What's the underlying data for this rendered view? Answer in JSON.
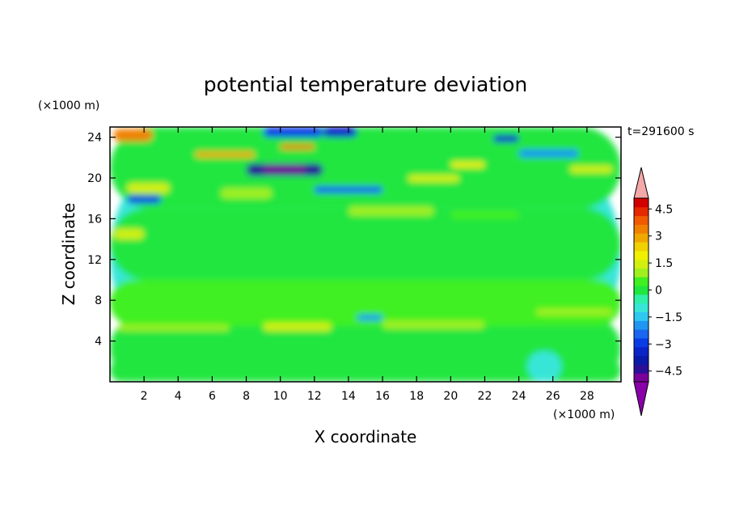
{
  "chart_data": {
    "type": "heatmap",
    "title": "potential temperature deviation",
    "xlabel": "X coordinate",
    "ylabel": "Z coordinate",
    "x_unit": "(×1000 m)",
    "y_unit": "(×1000 m)",
    "time_label": "t=291600 s",
    "xlim": [
      0,
      30
    ],
    "ylim": [
      0,
      25
    ],
    "x_ticks": [
      2,
      4,
      6,
      8,
      10,
      12,
      14,
      16,
      18,
      20,
      22,
      24,
      26,
      28
    ],
    "y_ticks": [
      4,
      8,
      12,
      16,
      20,
      24
    ],
    "colorbar": {
      "levels": [
        -5.1,
        -4.5,
        -3.9,
        -3.3,
        -3.0,
        -2.4,
        -1.8,
        -1.5,
        -0.9,
        -0.3,
        0.0,
        0.6,
        1.2,
        1.5,
        2.1,
        2.7,
        3.0,
        3.6,
        4.2,
        4.5,
        5.1
      ],
      "colors": [
        "#7a0099",
        "#2b0f99",
        "#0a1aa8",
        "#0a24c8",
        "#0a3ce6",
        "#1a66f0",
        "#1e96f2",
        "#2ec8f0",
        "#38e6d8",
        "#30f0a8",
        "#20e640",
        "#40f020",
        "#a0f020",
        "#d2f010",
        "#f0f000",
        "#f0d200",
        "#f0a800",
        "#f08000",
        "#f05a00",
        "#e62800",
        "#d20000"
      ],
      "under_color": "#8a00a8",
      "over_color": "#f4a8a8",
      "tick_labels": [
        "4.5",
        "3",
        "1.5",
        "0",
        "−1.5",
        "−3",
        "−4.5"
      ]
    },
    "regions": [
      {
        "x": [
          0,
          30
        ],
        "y": [
          0,
          25
        ],
        "value": -0.6
      },
      {
        "x": [
          0,
          30
        ],
        "y": [
          0,
          6.5
        ],
        "value": 0.2
      },
      {
        "x": [
          0,
          30
        ],
        "y": [
          5.5,
          10
        ],
        "value": 0.6
      },
      {
        "x": [
          0,
          30
        ],
        "y": [
          10,
          17
        ],
        "value": 0.3
      },
      {
        "x": [
          0,
          30
        ],
        "y": [
          17,
          25
        ],
        "value": 0.3
      },
      {
        "x": [
          0.2,
          2.0
        ],
        "y": [
          14.0,
          15.0
        ],
        "value": 1.5
      },
      {
        "x": [
          1.0,
          3.5
        ],
        "y": [
          18.5,
          19.5
        ],
        "value": 1.8
      },
      {
        "x": [
          1.0,
          3.0
        ],
        "y": [
          17.5,
          18.3
        ],
        "value": -2.8
      },
      {
        "x": [
          6.5,
          9.5
        ],
        "y": [
          18.0,
          19.0
        ],
        "value": 1.4
      },
      {
        "x": [
          8.0,
          12.5
        ],
        "y": [
          20.2,
          21.4
        ],
        "value": -4.0
      },
      {
        "x": [
          9.0,
          11.5
        ],
        "y": [
          20.5,
          21.2
        ],
        "value": -4.6
      },
      {
        "x": [
          10.0,
          12.0
        ],
        "y": [
          22.8,
          23.3
        ],
        "value": 3.6
      },
      {
        "x": [
          5.0,
          8.5
        ],
        "y": [
          22.0,
          22.6
        ],
        "value": 3.2
      },
      {
        "x": [
          0.2,
          2.5
        ],
        "y": [
          23.6,
          24.8
        ],
        "value": 3.8
      },
      {
        "x": [
          9.0,
          12.5
        ],
        "y": [
          24.0,
          25.0
        ],
        "value": -2.6
      },
      {
        "x": [
          12.5,
          14.5
        ],
        "y": [
          24.0,
          25.0
        ],
        "value": -3.2
      },
      {
        "x": [
          17.5,
          20.5
        ],
        "y": [
          19.6,
          20.3
        ],
        "value": 2.0
      },
      {
        "x": [
          20.0,
          22.0
        ],
        "y": [
          21.0,
          21.6
        ],
        "value": 2.6
      },
      {
        "x": [
          22.5,
          24.0
        ],
        "y": [
          23.5,
          24.2
        ],
        "value": -3.1
      },
      {
        "x": [
          24.0,
          27.5
        ],
        "y": [
          22.0,
          22.8
        ],
        "value": -1.6
      },
      {
        "x": [
          27.0,
          29.5
        ],
        "y": [
          20.5,
          21.2
        ],
        "value": 1.6
      },
      {
        "x": [
          12.0,
          16.0
        ],
        "y": [
          18.5,
          19.2
        ],
        "value": -2.2
      },
      {
        "x": [
          14.0,
          19.0
        ],
        "y": [
          16.3,
          17.2
        ],
        "value": 1.2
      },
      {
        "x": [
          20.0,
          24.0
        ],
        "y": [
          16.0,
          16.8
        ],
        "value": 0.9
      },
      {
        "x": [
          0.5,
          7.0
        ],
        "y": [
          5.0,
          5.6
        ],
        "value": 1.3
      },
      {
        "x": [
          9.0,
          13.0
        ],
        "y": [
          5.0,
          5.8
        ],
        "value": 1.5
      },
      {
        "x": [
          16.0,
          22.0
        ],
        "y": [
          5.2,
          6.0
        ],
        "value": 1.3
      },
      {
        "x": [
          14.5,
          16.0
        ],
        "y": [
          6.0,
          6.6
        ],
        "value": -1.7
      },
      {
        "x": [
          25.0,
          29.5
        ],
        "y": [
          6.5,
          7.2
        ],
        "value": 1.3
      },
      {
        "x": [
          0,
          30
        ],
        "y": [
          0,
          2.2
        ],
        "value": 0.0
      },
      {
        "x": [
          24.5,
          26.5
        ],
        "y": [
          0,
          3.0
        ],
        "value": -0.6
      }
    ]
  }
}
